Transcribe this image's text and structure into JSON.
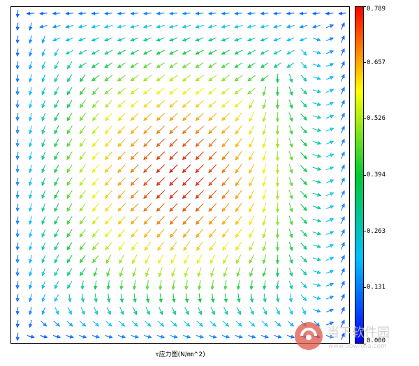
{
  "chart_data": {
    "type": "vector-field",
    "xlabel": "τ应力图(N/㎜^2)",
    "colorbar": {
      "range": [
        0.0,
        0.789
      ],
      "ticks": [
        "0.789",
        "0.657",
        "0.526",
        "0.394",
        "0.263",
        "0.131",
        "0.000"
      ],
      "colors": [
        "#0000ff",
        "#00bfff",
        "#00cc33",
        "#ffff00",
        "#ff0000"
      ]
    },
    "field": {
      "rows": 26,
      "cols": 26,
      "magnitude_max": 0.789,
      "direction": "shear flow toward lower-left, vortex-like circulation along edges"
    }
  },
  "watermark": {
    "text": "当下软件园",
    "subtext": "www.downxia.com"
  }
}
